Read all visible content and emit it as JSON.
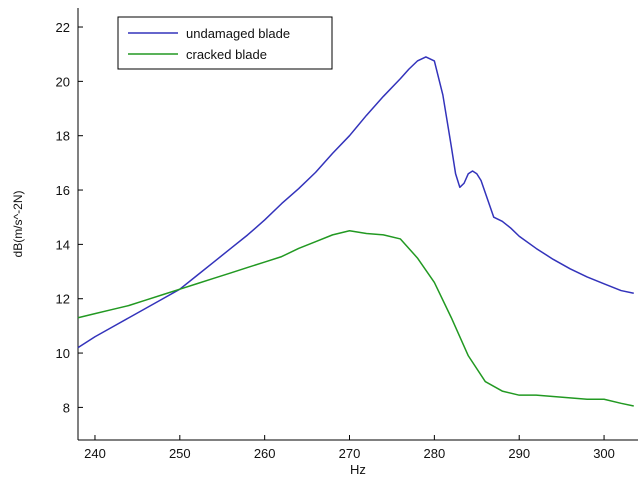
{
  "chart_data": {
    "type": "line",
    "xlabel": "Hz",
    "ylabel": "dB(m/s^-2N)",
    "xlim": [
      238,
      304
    ],
    "ylim": [
      6.8,
      22.7
    ],
    "xticks": [
      240,
      250,
      260,
      270,
      280,
      290,
      300
    ],
    "yticks": [
      8,
      10,
      12,
      14,
      16,
      18,
      20,
      22
    ],
    "grid": false,
    "legend_position": "top-left",
    "series": [
      {
        "name": "undamaged blade",
        "color": "#3333bb",
        "x": [
          238,
          240,
          242,
          244,
          246,
          248,
          250,
          252,
          254,
          256,
          258,
          260,
          262,
          264,
          266,
          268,
          270,
          272,
          274,
          276,
          277,
          278,
          279,
          280,
          281,
          282,
          282.5,
          283,
          283.5,
          284,
          284.5,
          285,
          285.5,
          286,
          287,
          288,
          289,
          290,
          292,
          294,
          296,
          298,
          300,
          302,
          303.5
        ],
        "y": [
          10.2,
          10.6,
          10.95,
          11.3,
          11.65,
          12.0,
          12.35,
          12.85,
          13.35,
          13.85,
          14.35,
          14.9,
          15.5,
          16.05,
          16.65,
          17.35,
          18.0,
          18.75,
          19.45,
          20.1,
          20.45,
          20.75,
          20.9,
          20.75,
          19.5,
          17.6,
          16.6,
          16.1,
          16.25,
          16.6,
          16.7,
          16.6,
          16.35,
          15.9,
          15.0,
          14.85,
          14.6,
          14.3,
          13.85,
          13.45,
          13.1,
          12.8,
          12.55,
          12.3,
          12.2
        ]
      },
      {
        "name": "cracked blade",
        "color": "#229922",
        "x": [
          238,
          240,
          242,
          244,
          246,
          248,
          250,
          252,
          254,
          256,
          258,
          260,
          262,
          264,
          266,
          268,
          270,
          271,
          272,
          274,
          276,
          278,
          280,
          282,
          284,
          286,
          288,
          290,
          292,
          294,
          296,
          298,
          300,
          302,
          303.5
        ],
        "y": [
          11.3,
          11.45,
          11.6,
          11.75,
          11.95,
          12.15,
          12.35,
          12.55,
          12.75,
          12.95,
          13.15,
          13.35,
          13.55,
          13.85,
          14.1,
          14.35,
          14.5,
          14.45,
          14.4,
          14.35,
          14.2,
          13.5,
          12.6,
          11.3,
          9.9,
          8.95,
          8.6,
          8.45,
          8.45,
          8.4,
          8.35,
          8.3,
          8.3,
          8.15,
          8.05
        ]
      }
    ]
  }
}
